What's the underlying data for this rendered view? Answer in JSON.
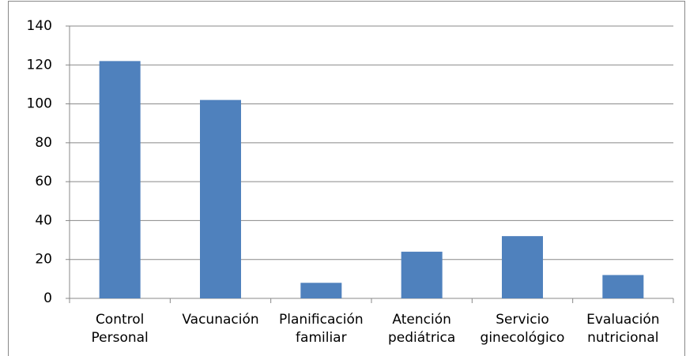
{
  "chart_data": {
    "type": "bar",
    "categories": [
      "Control Personal",
      "Vacunación",
      "Planificación familiar",
      "Atención pediátrica",
      "Servicio ginecológico",
      "Evaluación nutricional"
    ],
    "values": [
      122,
      102,
      8,
      24,
      32,
      12
    ],
    "color": "#4f81bd",
    "ylim": [
      0,
      140
    ],
    "yticks": [
      0,
      20,
      40,
      60,
      80,
      100,
      120,
      140
    ],
    "grid": true
  }
}
